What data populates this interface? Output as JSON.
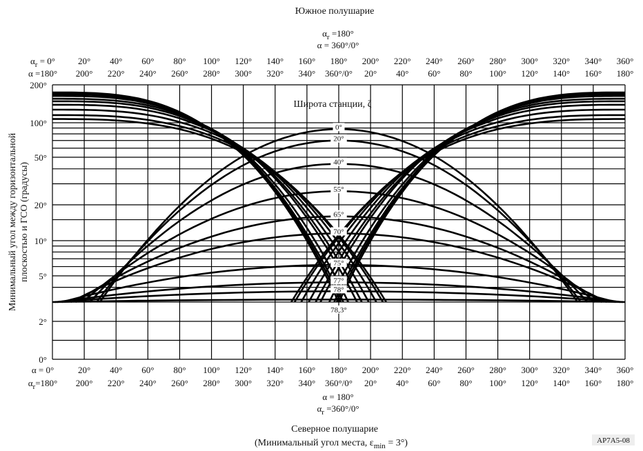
{
  "chart_data": {
    "type": "line",
    "title": "Южное полушарие",
    "subtitle": "Северное полушарие",
    "note": "(Минимальный угол места,   ε",
    "note_sub": "min",
    "note_end": " = 3°)",
    "ylabel_line1": "Минимальный угол между горизонтальной",
    "ylabel_line2": "плоскостью и ГСО (градусы)",
    "legend_title": "Широта станции,  ζ",
    "figure_id": "AP7A5-08",
    "top_center": {
      "line1_a": "α",
      "line1_sub": "r",
      "line1_b": " =180°",
      "line2": "α = 360°/0°"
    },
    "bottom_center": {
      "line1": "α = 180°",
      "line2_a": "α",
      "line2_sub": "r",
      "line2_b": " =360°/0°"
    },
    "x_top_row1": [
      "α",
      "20°",
      "40°",
      "60°",
      "80°",
      "100°",
      "120°",
      "140°",
      "160°",
      "180°",
      "200°",
      "220°",
      "240°",
      "260°",
      "280°",
      "300°",
      "320°",
      "340°",
      "360°"
    ],
    "x_top_row1_first_suffix": " = 0°",
    "x_top_row1_first_sub": "r",
    "x_top_row2": [
      "α =180°",
      "200°",
      "220°",
      "240°",
      "260°",
      "280°",
      "300°",
      "320°",
      "340°",
      "360°/0°",
      "20°",
      "40°",
      "60°",
      "80°",
      "100°",
      "120°",
      "140°",
      "160°",
      "180°"
    ],
    "x_bottom_row1": [
      "α = 0°",
      "20°",
      "40°",
      "60°",
      "80°",
      "100°",
      "120°",
      "140°",
      "160°",
      "180°",
      "200°",
      "220°",
      "240°",
      "260°",
      "280°",
      "300°",
      "320°",
      "340°",
      "360°"
    ],
    "x_bottom_row2": [
      "α",
      "200°",
      "220°",
      "240°",
      "260°",
      "280°",
      "300°",
      "320°",
      "340°",
      "360°/0°",
      "20°",
      "40°",
      "60°",
      "80°",
      "100°",
      "120°",
      "140°",
      "160°",
      "180°"
    ],
    "x_bottom_row2_first_suffix": "=180°",
    "x_bottom_row2_first_sub": "r",
    "y_ticks": [
      {
        "value": 0,
        "label": "0°"
      },
      {
        "value": 2,
        "label": "2°"
      },
      {
        "value": 5,
        "label": "5°"
      },
      {
        "value": 10,
        "label": "10°"
      },
      {
        "value": 20,
        "label": "20°"
      },
      {
        "value": 50,
        "label": "50°"
      },
      {
        "value": 100,
        "label": "100°"
      },
      {
        "value": 200,
        "label": "200°"
      }
    ],
    "ylim": [
      0,
      200
    ],
    "xlim": [
      0,
      360
    ],
    "grid": true,
    "series": [
      {
        "name": "0°",
        "peak": 88,
        "edge": 107
      },
      {
        "name": "20°",
        "peak": 70,
        "edge": 115
      },
      {
        "name": "40°",
        "peak": 44,
        "edge": 127
      },
      {
        "name": "55°",
        "peak": 26,
        "edge": 139
      },
      {
        "name": "65°",
        "peak": 16,
        "edge": 148
      },
      {
        "name": "70°",
        "peak": 11.5,
        "edge": 155
      },
      {
        "name": "75°",
        "peak": 6.2,
        "edge": 163
      },
      {
        "name": "77°",
        "peak": 4.4,
        "edge": 168
      },
      {
        "name": "78°",
        "peak": 3.7,
        "edge": 171
      },
      {
        "name": "78,3°",
        "peak": 3.15,
        "edge": 174
      }
    ]
  }
}
